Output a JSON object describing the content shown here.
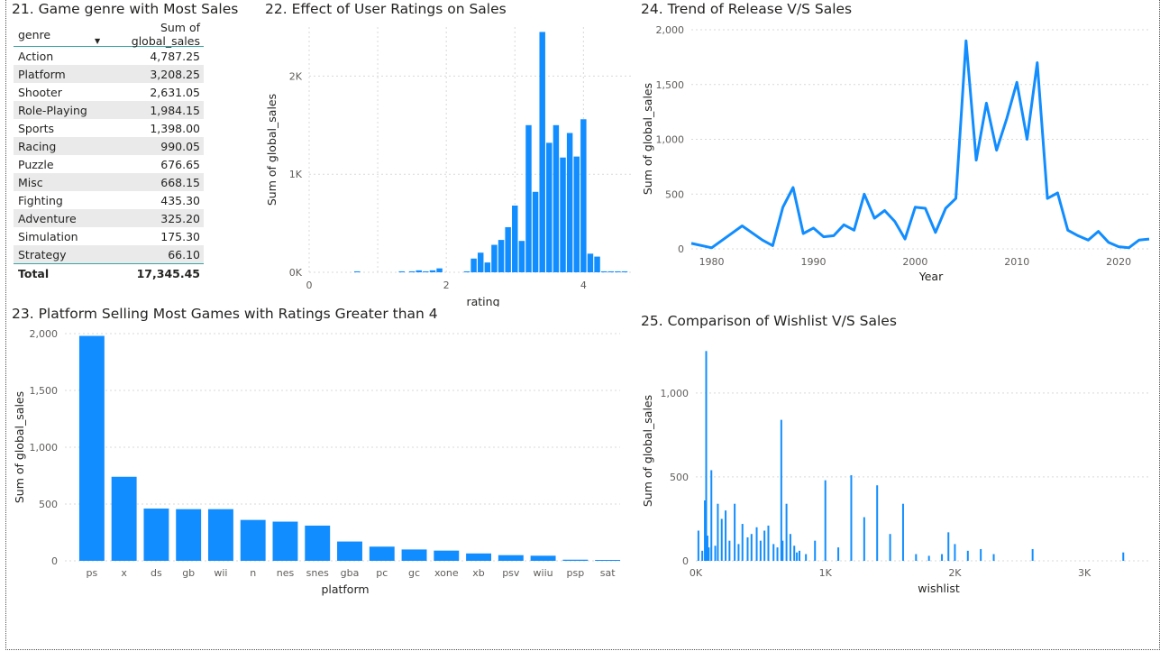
{
  "colors": {
    "bar": "#118DFF",
    "grid": "#d9d9d9",
    "text": "#252423",
    "tick": "#605e5c"
  },
  "table": {
    "title": "21. Game genre with Most Sales",
    "col_genre": "genre",
    "col_sales": "Sum of global_sales",
    "rows": [
      {
        "genre": "Action",
        "sales": "4,787.25"
      },
      {
        "genre": "Platform",
        "sales": "3,208.25"
      },
      {
        "genre": "Shooter",
        "sales": "2,631.05"
      },
      {
        "genre": "Role-Playing",
        "sales": "1,984.15"
      },
      {
        "genre": "Sports",
        "sales": "1,398.00"
      },
      {
        "genre": "Racing",
        "sales": "990.05"
      },
      {
        "genre": "Puzzle",
        "sales": "676.65"
      },
      {
        "genre": "Misc",
        "sales": "668.15"
      },
      {
        "genre": "Fighting",
        "sales": "435.30"
      },
      {
        "genre": "Adventure",
        "sales": "325.20"
      },
      {
        "genre": "Simulation",
        "sales": "175.30"
      },
      {
        "genre": "Strategy",
        "sales": "66.10"
      }
    ],
    "total_label": "Total",
    "total_value": "17,345.45"
  },
  "chart_data": [
    {
      "id": "ratings",
      "type": "bar",
      "title": "22. Effect of User Ratings on Sales",
      "xlabel": "rating",
      "ylabel": "Sum of global_sales",
      "xlim": [
        0,
        4.6
      ],
      "ylim": [
        0,
        2500
      ],
      "xticks": [
        0,
        2,
        4
      ],
      "xtick_labels": [
        "0",
        "2",
        "4"
      ],
      "yticks": [
        0,
        1000,
        2000
      ],
      "ytick_labels": [
        "0K",
        "1K",
        "2K"
      ],
      "x": [
        0.7,
        1.35,
        1.5,
        1.6,
        1.7,
        1.8,
        1.9,
        2.3,
        2.4,
        2.5,
        2.6,
        2.7,
        2.8,
        2.9,
        3.0,
        3.1,
        3.2,
        3.3,
        3.4,
        3.5,
        3.6,
        3.7,
        3.8,
        3.9,
        4.0,
        4.1,
        4.2,
        4.3,
        4.4,
        4.5,
        4.6
      ],
      "values": [
        10,
        10,
        10,
        20,
        10,
        20,
        40,
        10,
        140,
        200,
        100,
        280,
        330,
        460,
        680,
        320,
        1500,
        820,
        2450,
        1320,
        1500,
        1170,
        1420,
        1180,
        1560,
        190,
        160,
        10,
        10,
        10,
        10
      ]
    },
    {
      "id": "releases",
      "type": "line",
      "title": "24. Trend of Release V/S Sales",
      "xlabel": "Year",
      "ylabel": "Sum of global_sales",
      "xlim": [
        1978,
        2023
      ],
      "ylim": [
        0,
        2000
      ],
      "xticks": [
        1980,
        1990,
        2000,
        2010,
        2020
      ],
      "xtick_labels": [
        "1980",
        "1990",
        "2000",
        "2010",
        "2020"
      ],
      "yticks": [
        0,
        500,
        1000,
        1500,
        2000
      ],
      "ytick_labels": [
        "0",
        "500",
        "1,000",
        "1,500",
        "2,000"
      ],
      "x": [
        1978,
        1980,
        1983,
        1985,
        1986,
        1987,
        1988,
        1989,
        1990,
        1991,
        1992,
        1993,
        1994,
        1995,
        1996,
        1997,
        1998,
        1999,
        2000,
        2001,
        2002,
        2003,
        2004,
        2005,
        2006,
        2007,
        2008,
        2009,
        2010,
        2011,
        2012,
        2013,
        2014,
        2015,
        2016,
        2017,
        2018,
        2019,
        2020,
        2021,
        2022,
        2023
      ],
      "values": [
        50,
        10,
        210,
        80,
        30,
        380,
        560,
        140,
        190,
        110,
        120,
        220,
        170,
        500,
        280,
        350,
        250,
        90,
        380,
        370,
        150,
        370,
        460,
        1900,
        810,
        1330,
        900,
        1190,
        1520,
        1000,
        1700,
        460,
        510,
        170,
        120,
        80,
        160,
        60,
        20,
        10,
        80,
        90
      ]
    },
    {
      "id": "platforms",
      "type": "bar",
      "title": "23. Platform Selling Most Games with Ratings Greater than 4",
      "xlabel": "platform",
      "ylabel": "Sum of global_sales",
      "ylim": [
        0,
        2000
      ],
      "yticks": [
        0,
        500,
        1000,
        1500,
        2000
      ],
      "ytick_labels": [
        "0",
        "500",
        "1,000",
        "1,500",
        "2,000"
      ],
      "categories": [
        "ps",
        "x",
        "ds",
        "gb",
        "wii",
        "n",
        "nes",
        "snes",
        "gba",
        "pc",
        "gc",
        "xone",
        "xb",
        "psv",
        "wiiu",
        "psp",
        "sat"
      ],
      "values": [
        1980,
        740,
        460,
        455,
        455,
        360,
        345,
        310,
        170,
        125,
        100,
        90,
        65,
        50,
        45,
        10,
        8
      ]
    },
    {
      "id": "wishlist",
      "type": "bar",
      "title": "25. Comparison of Wishlist V/S Sales",
      "xlabel": "wishlist",
      "ylabel": "Sum of global_sales",
      "xlim": [
        0,
        3500
      ],
      "ylim": [
        0,
        1300
      ],
      "xticks": [
        0,
        1000,
        2000,
        3000
      ],
      "xtick_labels": [
        "0K",
        "1K",
        "2K",
        "3K"
      ],
      "yticks": [
        0,
        500,
        1000
      ],
      "ytick_labels": [
        "0",
        "500",
        "1,000"
      ],
      "x": [
        20,
        50,
        70,
        80,
        90,
        100,
        120,
        150,
        170,
        200,
        230,
        260,
        300,
        330,
        360,
        400,
        430,
        470,
        500,
        530,
        560,
        600,
        630,
        660,
        670,
        700,
        730,
        760,
        780,
        800,
        850,
        920,
        1000,
        1100,
        1200,
        1300,
        1400,
        1500,
        1600,
        1700,
        1800,
        1900,
        1950,
        2000,
        2100,
        2200,
        2300,
        2600,
        3300
      ],
      "values": [
        180,
        60,
        360,
        1250,
        150,
        80,
        540,
        90,
        340,
        250,
        300,
        120,
        340,
        100,
        220,
        140,
        160,
        200,
        120,
        180,
        210,
        100,
        80,
        840,
        120,
        340,
        160,
        90,
        50,
        60,
        40,
        120,
        480,
        80,
        510,
        260,
        450,
        160,
        340,
        40,
        30,
        40,
        170,
        100,
        60,
        70,
        40,
        70,
        50
      ]
    }
  ]
}
